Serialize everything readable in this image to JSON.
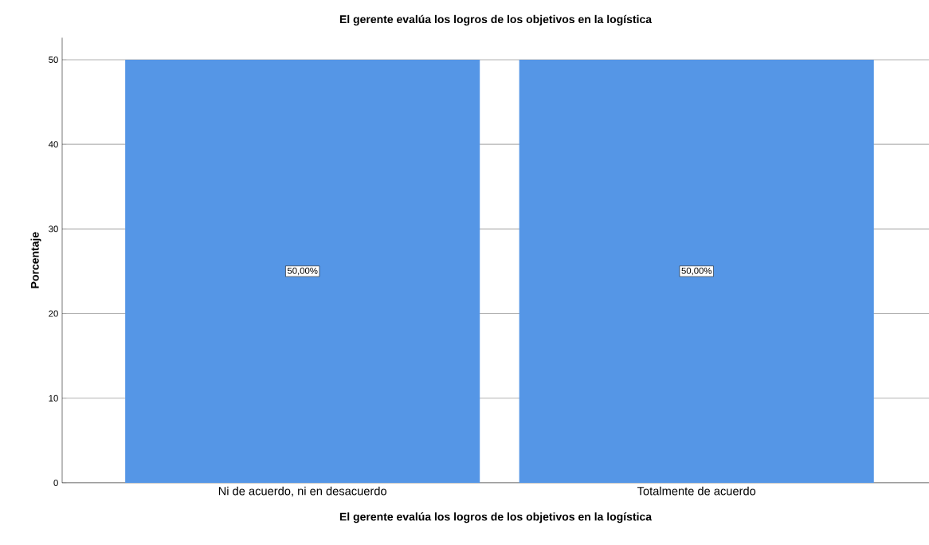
{
  "chart_data": {
    "type": "bar",
    "title": "El gerente evalúa los logros de los objetivos en la logística",
    "xlabel": "El gerente evalúa los logros de los objetivos en la logística",
    "ylabel": "Porcentaje",
    "categories": [
      "Ni de acuerdo, ni en desacuerdo",
      "Totalmente de acuerdo"
    ],
    "values": [
      50,
      50
    ],
    "color": "#5596e6",
    "value_labels": [
      "50,00%",
      "50,00%"
    ],
    "ylim": [
      0,
      52.6
    ],
    "yticks": [
      0,
      10,
      20,
      30,
      40,
      50
    ],
    "grid": "y"
  }
}
